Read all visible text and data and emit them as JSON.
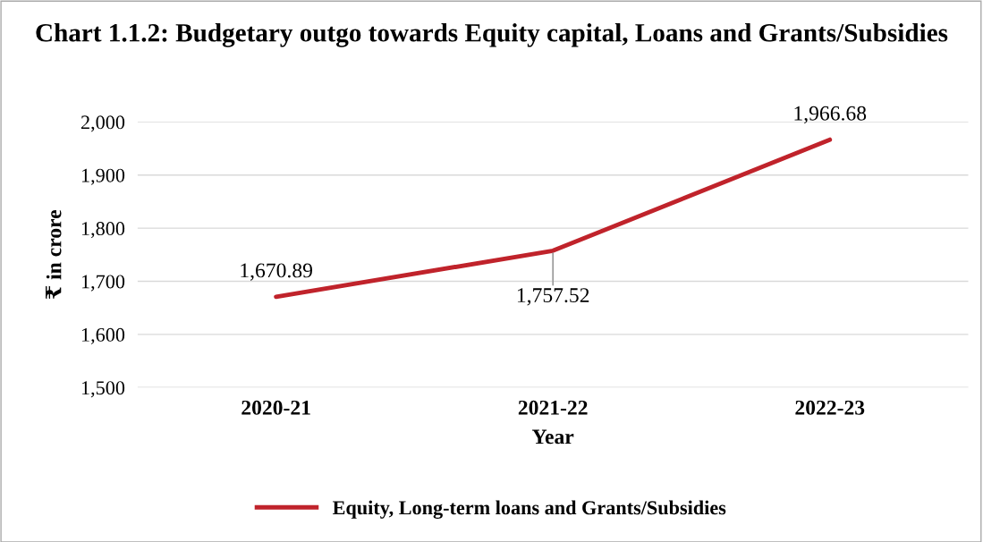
{
  "chart_data": {
    "type": "line",
    "title": "Chart 1.1.2: Budgetary outgo towards Equity capital, Loans and Grants/Subsidies",
    "xlabel": "Year",
    "ylabel": "₹ in crore",
    "categories": [
      "2020-21",
      "2021-22",
      "2022-23"
    ],
    "series": [
      {
        "name": "Equity, Long-term loans and Grants/Subsidies",
        "color": "#c0232b",
        "values": [
          1670.89,
          1757.52,
          1966.68
        ]
      }
    ],
    "value_labels": [
      "1,670.89",
      "1,757.52",
      "1,966.68"
    ],
    "ylim": [
      1500,
      2000
    ],
    "yticks": [
      {
        "value": 1500,
        "label": "1,500"
      },
      {
        "value": 1600,
        "label": "1,600"
      },
      {
        "value": 1700,
        "label": "1,700"
      },
      {
        "value": 1800,
        "label": "1,800"
      },
      {
        "value": 1900,
        "label": "1,900"
      },
      {
        "value": 2000,
        "label": "2,000"
      }
    ],
    "grid": "y",
    "legend": "bottom",
    "marker": "none",
    "line_style": "solid"
  }
}
